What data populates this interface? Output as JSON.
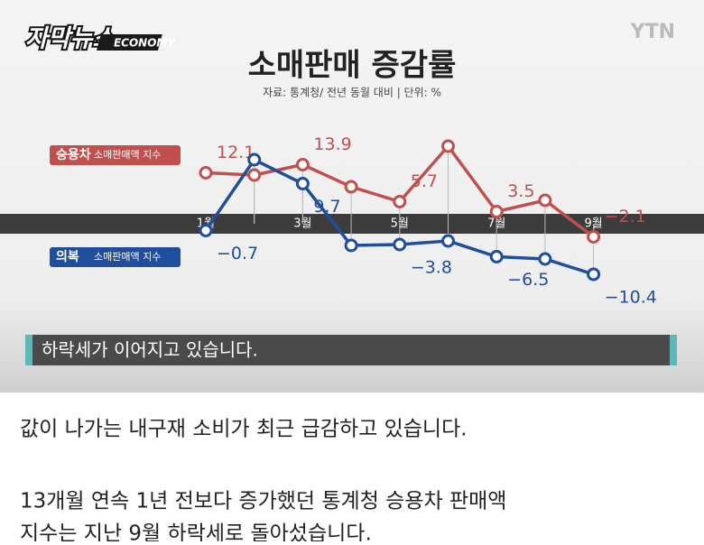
{
  "header": {
    "logo": "자막뉴스",
    "badge": "ECONOMY",
    "broadcaster": "YTN"
  },
  "chart_data": {
    "type": "line",
    "title": "소매판매 증감률",
    "subtitle": "자료: 통계청/ 전년 동월 대비 | 단위: %",
    "categories": [
      "1월",
      null,
      "3월",
      null,
      "5월",
      null,
      "7월",
      null,
      "9월"
    ],
    "series": [
      {
        "name": "승용차",
        "sub": "소매판매액 지수",
        "color": "#c0504d",
        "values": [
          12.1,
          11.6,
          13.9,
          9,
          5.7,
          18,
          3.5,
          6,
          -2.1
        ],
        "value_labels": [
          "12.1",
          null,
          "13.9",
          null,
          "5.7",
          null,
          "3.5",
          null,
          "−2.1"
        ]
      },
      {
        "name": "의복",
        "sub": "소매판매액 지수",
        "color": "#1f4e9c",
        "values": [
          -0.7,
          15,
          9.7,
          -4,
          -3.8,
          -3,
          -6.5,
          -7,
          -10.4
        ],
        "value_labels": [
          "−0.7",
          null,
          "9.7",
          null,
          "−3.8",
          null,
          "−6.5",
          null,
          "−10.4"
        ]
      }
    ]
  },
  "caption": "하락세가 이어지고 있습니다.",
  "article": {
    "paragraphs": [
      "값이 나가는 내구재 소비가 최근 급감하고 있습니다.",
      "13개월 연속 1년 전보다 증가했던 통계청 승용차 판매액",
      "지수는 지난 9월 하락세로 돌아섰습니다."
    ]
  }
}
